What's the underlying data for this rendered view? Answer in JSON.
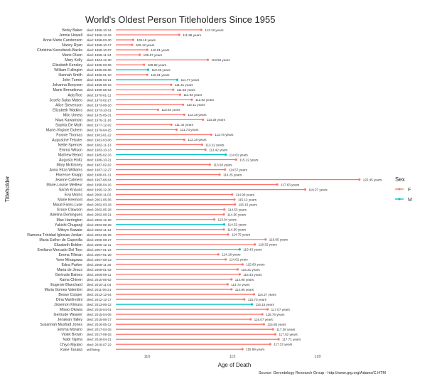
{
  "chart_data": {
    "type": "lollipop",
    "title": "World's Oldest Person Titleholders Since 1955",
    "xlabel": "Age of Death",
    "ylabel": "Titleholder",
    "caption": "Source: Gerontology Research Group - http://www.grg.org/Adams/C.HTM",
    "xlim": [
      108,
      123
    ],
    "xticks": [
      110,
      115,
      120
    ],
    "grid": false,
    "legend": {
      "title": "Sex",
      "position": "right",
      "entries": [
        {
          "label": "F",
          "color": "#F8766D"
        },
        {
          "label": "M",
          "color": "#00BFC4"
        }
      ]
    },
    "value_suffix": " years",
    "rows": [
      {
        "name": "Betsy Baker",
        "date": "died: 1955-10-24",
        "age": 113.18,
        "sex": "F"
      },
      {
        "name": "Jennie Howell",
        "date": "died: 1956-12-16",
        "age": 111.88,
        "sex": "F"
      },
      {
        "name": "Anne Marie Carstenson",
        "date": "died: 1958-03-30",
        "age": 109.18,
        "sex": "F"
      },
      {
        "name": "Nancy Ryan",
        "date": "died: 1958-10-17",
        "age": 109.12,
        "sex": "F"
      },
      {
        "name": "Christina Karnebeek-Backs",
        "date": "died: 1959-10-07",
        "age": 110.01,
        "sex": "F"
      },
      {
        "name": "Marie Olsen",
        "date": "died: 1959-11-24",
        "age": 109.57,
        "sex": "F"
      },
      {
        "name": "Mary Kelly",
        "date": "died: 1964-12-30",
        "age": 113.56,
        "sex": "F"
      },
      {
        "name": "Elizabeth Kensley",
        "date": "died: 1965-03-06",
        "age": 109.82,
        "sex": "F"
      },
      {
        "name": "William Fullingim",
        "date": "died: 1965-09-06",
        "age": 110.06,
        "sex": "M"
      },
      {
        "name": "Hannah Smith",
        "date": "died: 1966-01-10",
        "age": 110.01,
        "sex": "F"
      },
      {
        "name": "John Turner",
        "date": "died: 1968-03-21",
        "age": 111.77,
        "sex": "M"
      },
      {
        "name": "Johanna Booysen",
        "date": "died: 1969-06-16",
        "age": 111.41,
        "sex": "F"
      },
      {
        "name": "Marie Bernatkova",
        "date": "died: 1969-08-04",
        "age": 111.53,
        "sex": "F"
      },
      {
        "name": "Ada Roe",
        "date": "died: 1970-01-11",
        "age": 111.93,
        "sex": "F"
      },
      {
        "name": "Josefa Salas Mateo",
        "date": "died: 1973-02-27",
        "age": 112.62,
        "sex": "F"
      },
      {
        "name": "Alice Stevenson",
        "date": "died: 1973-08-18",
        "age": 112.11,
        "sex": "F"
      },
      {
        "name": "Elizabeth Watkins",
        "date": "died: 1973-10-31",
        "age": 110.64,
        "sex": "F"
      },
      {
        "name": "Mito Umeta",
        "date": "died: 1975-05-31",
        "age": 112.18,
        "sex": "F"
      },
      {
        "name": "Niwa Kawamoto",
        "date": "died: 1976-11-16",
        "age": 113.28,
        "sex": "F"
      },
      {
        "name": "Sophia De Muth",
        "date": "died: 1977-12-02",
        "age": 111.42,
        "sex": "F"
      },
      {
        "name": "Marie-Virginie Duhem",
        "date": "died: 1979-04-25",
        "age": 111.73,
        "sex": "F"
      },
      {
        "name": "Fannie Thomas",
        "date": "died: 1981-01-22",
        "age": 113.76,
        "sex": "F"
      },
      {
        "name": "Augustine Teissier",
        "date": "died: 1981-03-08",
        "age": 112.18,
        "sex": "F"
      },
      {
        "name": "Nellie Spencer",
        "date": "died: 1982-11-13",
        "age": 113.22,
        "sex": "F"
      },
      {
        "name": "Emma Wilson",
        "date": "died: 1983-10-13",
        "age": 113.42,
        "sex": "F"
      },
      {
        "name": "Mathew Beard",
        "date": "died: 1985-02-16",
        "age": 114.61,
        "sex": "M"
      },
      {
        "name": "Augusta Holtz",
        "date": "died: 1986-10-21",
        "age": 115.22,
        "sex": "F"
      },
      {
        "name": "Mary McKinney",
        "date": "died: 1987-02-02",
        "age": 113.68,
        "sex": "F"
      },
      {
        "name": "Anna Eliza Williams",
        "date": "died: 1987-12-27",
        "age": 114.57,
        "sex": "F"
      },
      {
        "name": "Florence Knapp",
        "date": "died: 1988-01-11",
        "age": 114.25,
        "sex": "F"
      },
      {
        "name": "Jeanne Calment",
        "date": "died: 1997-08-04",
        "age": 122.45,
        "sex": "F"
      },
      {
        "name": "Marie-Louise Meilleur",
        "date": "died: 1998-04-16",
        "age": 117.63,
        "sex": "F"
      },
      {
        "name": "Sarah Knauss",
        "date": "died: 1999-12-30",
        "age": 119.27,
        "sex": "F"
      },
      {
        "name": "Eva Morris",
        "date": "died: 2000-11-02",
        "age": 114.99,
        "sex": "F"
      },
      {
        "name": "Marie Bremont",
        "date": "died: 2001-06-06",
        "age": 115.12,
        "sex": "F"
      },
      {
        "name": "Maud Farris-Luse",
        "date": "died: 2002-03-18",
        "age": 115.15,
        "sex": "F"
      },
      {
        "name": "Grace Clawson",
        "date": "died: 2002-05-28",
        "age": 114.53,
        "sex": "F"
      },
      {
        "name": "Adelina Domingues",
        "date": "died: 2002-08-21",
        "age": 114.5,
        "sex": "F"
      },
      {
        "name": "Mae Harrington",
        "date": "died: 2002-12-29",
        "age": 113.94,
        "sex": "F"
      },
      {
        "name": "Yukichi Chuganji",
        "date": "died: 2003-09-28",
        "age": 114.52,
        "sex": "M"
      },
      {
        "name": "Mitoyo Kawate",
        "date": "died: 2003-11-13",
        "age": 114.5,
        "sex": "F"
      },
      {
        "name": "Ramona Trinidad Iglesias-Jordan",
        "date": "died: 2004-05-29",
        "age": 114.75,
        "sex": "F"
      },
      {
        "name": "Maria Esther de Capovilla",
        "date": "died: 2006-08-27",
        "age": 116.95,
        "sex": "F"
      },
      {
        "name": "Elizabeth Bolden",
        "date": "died: 2006-12-11",
        "age": 116.32,
        "sex": "F"
      },
      {
        "name": "Emiliano Mercado Del Toro",
        "date": "died: 2007-01-24",
        "age": 115.43,
        "sex": "M"
      },
      {
        "name": "Emma Tillman",
        "date": "died: 2007-01-28",
        "age": 114.18,
        "sex": "F"
      },
      {
        "name": "Yone Minagawa",
        "date": "died: 2007-08-13",
        "age": 114.61,
        "sex": "F"
      },
      {
        "name": "Edna Parker",
        "date": "died: 2008-11-26",
        "age": 115.6,
        "sex": "F"
      },
      {
        "name": "Maria de Jesus",
        "date": "died: 2009-01-02",
        "age": 115.31,
        "sex": "F"
      },
      {
        "name": "Gertrude Baines",
        "date": "died: 2009-09-11",
        "age": 115.43,
        "sex": "F"
      },
      {
        "name": "Kama Chinen",
        "date": "died: 2010-05-02",
        "age": 114.95,
        "sex": "F"
      },
      {
        "name": "Eugenie Blanchard",
        "date": "died: 2010-11-04",
        "age": 114.72,
        "sex": "F"
      },
      {
        "name": "Maria Gomes Valentim",
        "date": "died: 2011-06-21",
        "age": 114.95,
        "sex": "F"
      },
      {
        "name": "Besse Cooper",
        "date": "died: 2012-12-04",
        "age": 116.27,
        "sex": "F"
      },
      {
        "name": "Dina Manfredini",
        "date": "died: 2012-12-17",
        "age": 115.7,
        "sex": "F"
      },
      {
        "name": "Jiroemon Kimura",
        "date": "died: 2013-06-12",
        "age": 116.15,
        "sex": "M"
      },
      {
        "name": "Misao Okawa",
        "date": "died: 2015-04-01",
        "age": 117.07,
        "sex": "F"
      },
      {
        "name": "Gertrude Weaver",
        "date": "died: 2015-04-06",
        "age": 116.76,
        "sex": "F"
      },
      {
        "name": "Jeralean Talley",
        "date": "died: 2015-06-17",
        "age": 116.07,
        "sex": "F"
      },
      {
        "name": "Susannah Mushatt Jones",
        "date": "died: 2016-05-12",
        "age": 116.85,
        "sex": "F"
      },
      {
        "name": "Emma Morano",
        "date": "died: 2017-04-15",
        "age": 117.38,
        "sex": "F"
      },
      {
        "name": "Violet Brown",
        "date": "died: 2017-09-15",
        "age": 117.52,
        "sex": "F"
      },
      {
        "name": "Nabi Tajima",
        "date": "died: 2018-04-21",
        "age": 117.71,
        "sex": "F"
      },
      {
        "name": "Chiyo Miyako",
        "date": "died: 2018-07-22",
        "age": 117.22,
        "sex": "F"
      },
      {
        "name": "Kane Tanaka",
        "date": "still living",
        "age": 115.59,
        "sex": "F"
      }
    ]
  }
}
